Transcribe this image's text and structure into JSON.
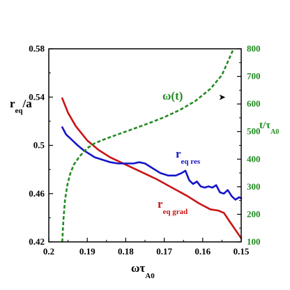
{
  "chart_data": {
    "type": "line",
    "xaxis": {
      "ticks": [
        0.2,
        0.19,
        0.18,
        0.17,
        0.16,
        0.15
      ],
      "tick_labels": [
        "0.2",
        "0.19",
        "0.18",
        "0.17",
        "0.16",
        "0.15"
      ],
      "range": [
        0.2,
        0.15
      ],
      "reversed": true,
      "label_main": "ωτ",
      "label_sub": "A0"
    },
    "yaxis_left": {
      "ticks": [
        0.42,
        0.46,
        0.5,
        0.54,
        0.58
      ],
      "tick_labels": [
        "0.42",
        "0.46",
        "0.5",
        "0.54",
        "0.58"
      ],
      "range": [
        0.42,
        0.58
      ],
      "label_main": "r",
      "label_sub": "eq",
      "label_tail": "/a"
    },
    "yaxis_right": {
      "ticks": [
        100,
        200,
        300,
        400,
        500,
        600,
        700,
        800
      ],
      "tick_labels": [
        "100",
        "200",
        "300",
        "400",
        "500",
        "600",
        "700",
        "800"
      ],
      "range": [
        100,
        800
      ],
      "label_main": "t/τ",
      "label_sub": "A0",
      "color": "#228b22"
    },
    "grid": false,
    "series": [
      {
        "name": "r_eq grad",
        "label_main": "r",
        "label_sub": "eq grad",
        "axis": "left",
        "color": "#c81414",
        "style": "solid",
        "x": [
          0.1965,
          0.195,
          0.193,
          0.19,
          0.187,
          0.184,
          0.18,
          0.176,
          0.172,
          0.168,
          0.164,
          0.161,
          0.158,
          0.156,
          0.1545,
          0.153,
          0.1515,
          0.15
        ],
        "y": [
          0.539,
          0.527,
          0.516,
          0.504,
          0.496,
          0.49,
          0.484,
          0.478,
          0.472,
          0.465,
          0.458,
          0.452,
          0.447,
          0.446,
          0.444,
          0.437,
          0.43,
          0.423
        ]
      },
      {
        "name": "r_eq res",
        "label_main": "r",
        "label_sub": "eq res",
        "axis": "left",
        "color": "#1414c8",
        "style": "solid",
        "x": [
          0.1965,
          0.1955,
          0.1945,
          0.1935,
          0.1925,
          0.191,
          0.1895,
          0.188,
          0.186,
          0.184,
          0.182,
          0.18,
          0.178,
          0.1765,
          0.175,
          0.173,
          0.171,
          0.169,
          0.167,
          0.1655,
          0.1645,
          0.1635,
          0.1625,
          0.1615,
          0.1605,
          0.1595,
          0.1585,
          0.1575,
          0.1565,
          0.1555,
          0.1545,
          0.1535,
          0.1525,
          0.1515,
          0.1505,
          0.15
        ],
        "y": [
          0.515,
          0.509,
          0.506,
          0.503,
          0.5,
          0.496,
          0.493,
          0.49,
          0.488,
          0.486,
          0.485,
          0.485,
          0.485,
          0.486,
          0.485,
          0.481,
          0.477,
          0.475,
          0.475,
          0.477,
          0.479,
          0.471,
          0.468,
          0.47,
          0.466,
          0.465,
          0.466,
          0.465,
          0.467,
          0.461,
          0.46,
          0.463,
          0.458,
          0.455,
          0.457,
          0.456
        ]
      },
      {
        "name": "ω(t)",
        "label_main": "ω(t)",
        "axis": "right",
        "color": "#228b22",
        "style": "dashed",
        "x": [
          0.1965,
          0.1962,
          0.1958,
          0.1952,
          0.1945,
          0.1935,
          0.192,
          0.19,
          0.188,
          0.185,
          0.182,
          0.178,
          0.174,
          0.17,
          0.166,
          0.162,
          0.158,
          0.155,
          0.152
        ],
        "y": [
          100,
          180,
          250,
          305,
          345,
          380,
          410,
          440,
          458,
          475,
          490,
          510,
          530,
          552,
          578,
          610,
          655,
          705,
          800
        ]
      }
    ],
    "annotations": {
      "omega_label": "ω(t)",
      "arrow": "➤"
    }
  }
}
